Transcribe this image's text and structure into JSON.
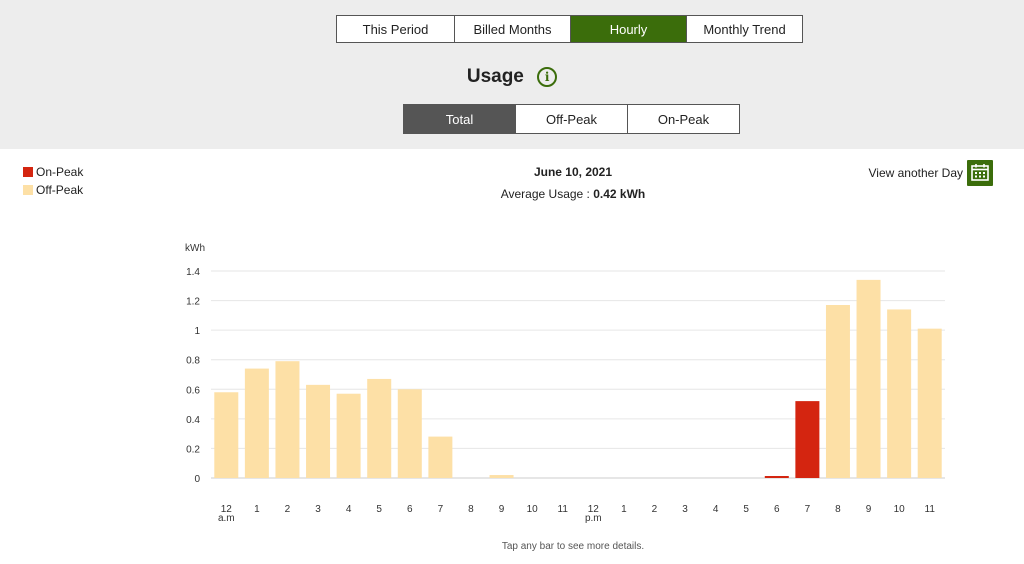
{
  "tabs": [
    {
      "label": "This Period",
      "active": false
    },
    {
      "label": "Billed Months",
      "active": false
    },
    {
      "label": "Hourly",
      "active": true
    },
    {
      "label": "Monthly Trend",
      "active": false
    }
  ],
  "usage_title": "Usage",
  "info_icon": "info-icon",
  "subtabs": [
    {
      "label": "Total",
      "active": true
    },
    {
      "label": "Off-Peak",
      "active": false
    },
    {
      "label": "On-Peak",
      "active": false
    }
  ],
  "legend": [
    {
      "label": "On-Peak",
      "color": "#d42510"
    },
    {
      "label": "Off-Peak",
      "color": "#fde0a6"
    }
  ],
  "header": {
    "date": "June 10, 2021",
    "avg_label": "Average Usage : ",
    "avg_value": "0.42 kWh"
  },
  "view_another": {
    "label": "View another Day",
    "icon": "calendar-icon"
  },
  "footnote": "Tap any bar to see more details.",
  "colors": {
    "accent_green": "#3b6d0b",
    "on_peak": "#d42510",
    "off_peak": "#fde0a6",
    "grid": "#e6e6e6"
  },
  "chart_data": {
    "type": "bar",
    "ylabel": "kWh",
    "ylim": [
      0,
      1.4
    ],
    "yticks": [
      "0",
      "0.2",
      "0.4",
      "0.6",
      "0.8",
      "1",
      "1.2",
      "1.4"
    ],
    "categories": [
      "12",
      "1",
      "2",
      "3",
      "4",
      "5",
      "6",
      "7",
      "8",
      "9",
      "10",
      "11",
      "12",
      "1",
      "2",
      "3",
      "4",
      "5",
      "6",
      "7",
      "8",
      "9",
      "10",
      "11"
    ],
    "sublabels": {
      "0": "a.m",
      "12": "p.m"
    },
    "values": [
      0.58,
      0.74,
      0.79,
      0.63,
      0.57,
      0.67,
      0.6,
      0.28,
      0.0,
      0.02,
      0.0,
      0.0,
      0.0,
      0.0,
      0.0,
      0.0,
      0.0,
      0.0,
      0.01,
      0.52,
      1.17,
      1.34,
      1.14,
      1.01
    ],
    "peak": [
      "off",
      "off",
      "off",
      "off",
      "off",
      "off",
      "off",
      "off",
      "off",
      "off",
      "off",
      "off",
      "off",
      "off",
      "off",
      "off",
      "off",
      "off",
      "on",
      "on",
      "off",
      "off",
      "off",
      "off"
    ],
    "grid": true,
    "legend_position": "top-left"
  }
}
